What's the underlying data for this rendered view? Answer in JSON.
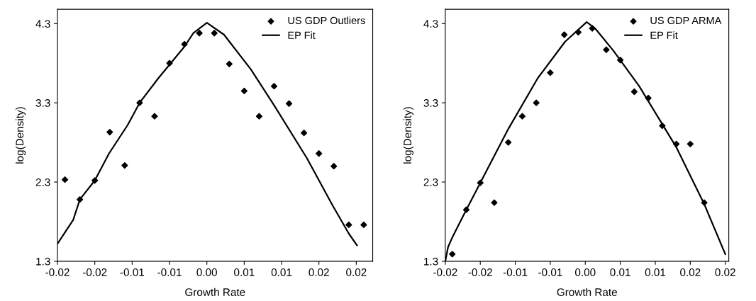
{
  "chart_data": [
    {
      "type": "scatter",
      "xlabel": "Growth Rate",
      "ylabel": "log(Density)",
      "xlim": [
        -0.02,
        0.0222
      ],
      "ylim": [
        1.3,
        4.48
      ],
      "xticks": [
        {
          "value": -0.02,
          "label": "-0.02"
        },
        {
          "value": -0.015,
          "label": "-0.02"
        },
        {
          "value": -0.01,
          "label": "-0.01"
        },
        {
          "value": -0.005,
          "label": "-0.01"
        },
        {
          "value": 0,
          "label": "0.00"
        },
        {
          "value": 0.005,
          "label": "0.01"
        },
        {
          "value": 0.01,
          "label": "0.01"
        },
        {
          "value": 0.015,
          "label": "0.02"
        },
        {
          "value": 0.02,
          "label": "0.02"
        }
      ],
      "yticks": [
        1.3,
        2.3,
        3.3,
        4.3
      ],
      "grid": false,
      "legend": "top right",
      "series": [
        {
          "name": "US GDP Outliers",
          "marker": "diamond",
          "color": "#000000",
          "x": [
            -0.019,
            -0.017,
            -0.015,
            -0.013,
            -0.011,
            -0.009,
            -0.007,
            -0.005,
            -0.003,
            -0.001,
            0.001,
            0.003,
            0.005,
            0.007,
            0.009,
            0.011,
            0.013,
            0.015,
            0.017,
            0.019,
            0.021
          ],
          "values": [
            2.33,
            2.08,
            2.32,
            2.93,
            2.51,
            3.3,
            3.13,
            3.8,
            4.04,
            4.18,
            4.18,
            3.79,
            3.45,
            3.13,
            3.51,
            3.29,
            2.92,
            2.66,
            2.5,
            1.76,
            1.76
          ]
        },
        {
          "name": "EP Fit",
          "type": "line",
          "color": "#000000",
          "line_style": "solid",
          "x": [
            -0.02,
            -0.0179,
            -0.017,
            -0.015,
            -0.0131,
            -0.0106,
            -0.009,
            -0.0065,
            -0.003,
            -0.0018,
            0.0,
            0.0023,
            0.0059,
            0.009,
            0.0134,
            0.0168,
            0.019,
            0.0201
          ],
          "values": [
            1.52,
            1.82,
            2.08,
            2.32,
            2.66,
            3.02,
            3.3,
            3.61,
            4.01,
            4.18,
            4.31,
            4.16,
            3.72,
            3.27,
            2.6,
            2.01,
            1.65,
            1.5
          ]
        }
      ]
    },
    {
      "type": "scatter",
      "xlabel": "Growth Rate",
      "ylabel": "log(Density)",
      "xlim": [
        -0.02,
        0.0205
      ],
      "ylim": [
        1.3,
        4.48
      ],
      "xticks": [
        {
          "value": -0.02,
          "label": "-0.02"
        },
        {
          "value": -0.015,
          "label": "-0.02"
        },
        {
          "value": -0.01,
          "label": "-0.01"
        },
        {
          "value": -0.005,
          "label": "-0.01"
        },
        {
          "value": 0,
          "label": "0.00"
        },
        {
          "value": 0.005,
          "label": "0.01"
        },
        {
          "value": 0.01,
          "label": "0.01"
        },
        {
          "value": 0.015,
          "label": "0.02"
        },
        {
          "value": 0.02,
          "label": "0.02"
        }
      ],
      "yticks": [
        1.3,
        2.3,
        3.3,
        4.3
      ],
      "grid": false,
      "legend": "top right",
      "series": [
        {
          "name": "US GDP ARMA",
          "marker": "diamond",
          "color": "#000000",
          "x": [
            -0.019,
            -0.017,
            -0.015,
            -0.013,
            -0.011,
            -0.009,
            -0.007,
            -0.005,
            -0.003,
            -0.001,
            0.001,
            0.003,
            0.005,
            0.007,
            0.009,
            0.011,
            0.013,
            0.015,
            0.017
          ],
          "values": [
            1.39,
            1.95,
            2.29,
            2.04,
            2.8,
            3.13,
            3.3,
            3.68,
            4.16,
            4.19,
            4.24,
            3.97,
            3.84,
            3.44,
            3.36,
            3.01,
            2.78,
            2.78,
            2.04
          ]
        },
        {
          "name": "EP Fit",
          "type": "line",
          "color": "#000000",
          "line_style": "solid",
          "x": [
            -0.02,
            -0.0196,
            -0.019,
            -0.017,
            -0.015,
            -0.011,
            -0.0068,
            -0.0029,
            0.0002,
            0.0014,
            0.004,
            0.0077,
            0.013,
            0.017,
            0.02
          ],
          "values": [
            1.3,
            1.48,
            1.6,
            1.95,
            2.29,
            2.97,
            3.61,
            4.07,
            4.32,
            4.24,
            3.96,
            3.51,
            2.74,
            2.02,
            1.39
          ]
        }
      ]
    }
  ]
}
